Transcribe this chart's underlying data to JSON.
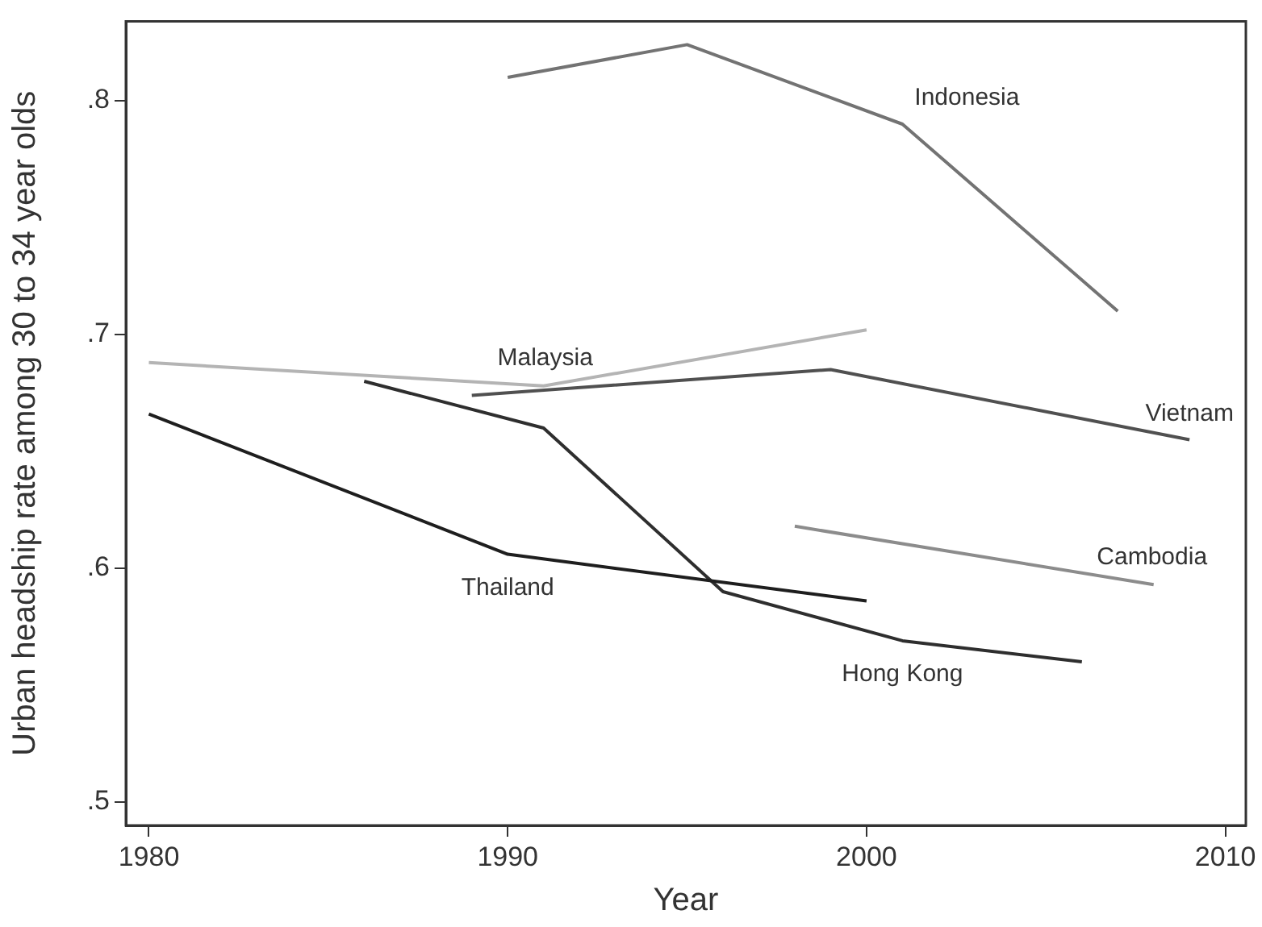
{
  "chart_data": {
    "type": "line",
    "xlabel": "Year",
    "ylabel": "Urban headship rate among 30 to 34 year olds",
    "xlim": [
      1979.36,
      2010.57
    ],
    "ylim": [
      0.49,
      0.834
    ],
    "xticks": [
      1980,
      1990,
      2000,
      2010
    ],
    "yticks": [
      {
        "value": 0.5,
        "label": ".5"
      },
      {
        "value": 0.6,
        "label": ".6"
      },
      {
        "value": 0.7,
        "label": ".7"
      },
      {
        "value": 0.8,
        "label": ".8"
      }
    ],
    "grid": false,
    "legend": false,
    "marker": "none",
    "line_style": "solid",
    "series": [
      {
        "name": "Indonesia",
        "color": "#737373",
        "x": [
          1990,
          1995,
          2001,
          2007
        ],
        "values": [
          0.81,
          0.824,
          0.79,
          0.71
        ]
      },
      {
        "name": "Malaysia",
        "color": "#b4b4b4",
        "x": [
          1980,
          1991,
          2000
        ],
        "values": [
          0.688,
          0.678,
          0.702
        ]
      },
      {
        "name": "Vietnam",
        "color": "#505050",
        "x": [
          1989,
          1999,
          2009
        ],
        "values": [
          0.674,
          0.685,
          0.655
        ]
      },
      {
        "name": "Thailand",
        "color": "#1e1e1e",
        "x": [
          1980,
          1990,
          2000
        ],
        "values": [
          0.666,
          0.606,
          0.586
        ]
      },
      {
        "name": "Hong Kong",
        "color": "#2e2e2e",
        "x": [
          1986,
          1991,
          1996,
          2001,
          2006
        ],
        "values": [
          0.68,
          0.66,
          0.59,
          0.569,
          0.56
        ]
      },
      {
        "name": "Cambodia",
        "color": "#8c8c8c",
        "x": [
          1998,
          2008
        ],
        "values": [
          0.618,
          0.593
        ]
      }
    ]
  }
}
